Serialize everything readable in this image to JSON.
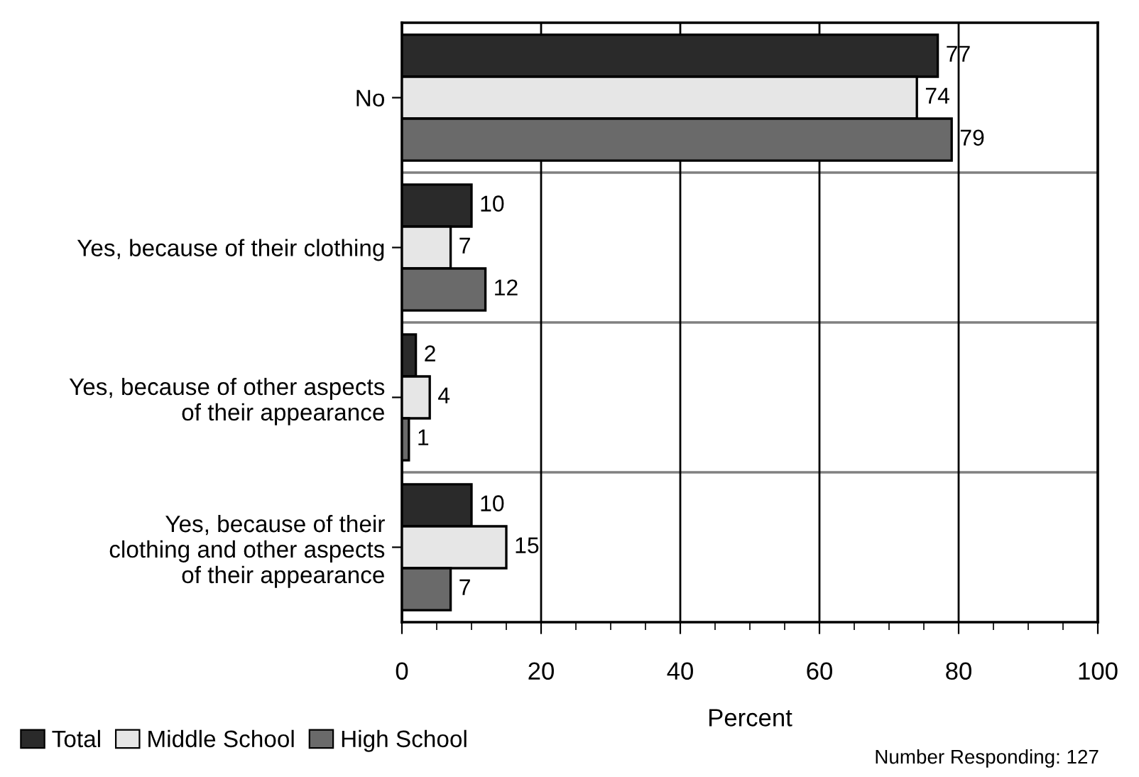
{
  "chart_data": {
    "type": "bar",
    "orientation": "horizontal",
    "categories": [
      "No",
      "Yes, because of their clothing",
      "Yes, because of other aspects\nof their appearance",
      "Yes, because of their\nclothing and other aspects\nof their appearance"
    ],
    "series": [
      {
        "name": "Total",
        "color": "#2a2a2a",
        "values": [
          77,
          10,
          2,
          10
        ]
      },
      {
        "name": "Middle School",
        "color": "#e6e6e6",
        "values": [
          74,
          7,
          4,
          15
        ]
      },
      {
        "name": "High School",
        "color": "#6a6a6a",
        "values": [
          79,
          12,
          1,
          7
        ]
      }
    ],
    "xlabel": "Percent",
    "xlim": [
      0,
      100
    ],
    "xticks": [
      0,
      20,
      40,
      60,
      80,
      100
    ],
    "grid": true,
    "legend": "bottom left",
    "data_labels": true,
    "annotations": [
      "Number Responding: 127"
    ]
  }
}
